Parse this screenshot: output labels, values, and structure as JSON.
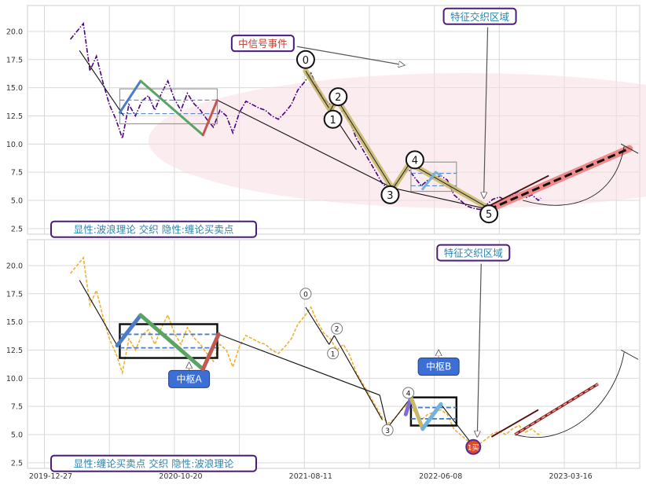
{
  "chart_data": [
    {
      "type": "line",
      "panel": "top",
      "title": "",
      "xlabel": "",
      "ylabel": "",
      "ylim": [
        2,
        22.3
      ],
      "yticks": [
        2.5,
        5.0,
        7.5,
        10.0,
        12.5,
        15.0,
        17.5,
        20.0
      ],
      "grid": true,
      "price_color": "#4b0082",
      "price_style": "dash-dot",
      "price_series": [
        [
          0,
          19.3
        ],
        [
          5,
          20.0
        ],
        [
          10,
          20.7
        ],
        [
          15,
          16.5
        ],
        [
          20,
          17.8
        ],
        [
          25,
          15.5
        ],
        [
          30,
          13.5
        ],
        [
          35,
          12.2
        ],
        [
          40,
          10.5
        ],
        [
          45,
          13.5
        ],
        [
          50,
          12.5
        ],
        [
          55,
          13.8
        ],
        [
          60,
          14.3
        ],
        [
          65,
          13.0
        ],
        [
          70,
          14.5
        ],
        [
          75,
          15.6
        ],
        [
          80,
          14.0
        ],
        [
          85,
          13.0
        ],
        [
          90,
          14.5
        ],
        [
          95,
          13.6
        ],
        [
          100,
          13.0
        ],
        [
          105,
          12.2
        ],
        [
          110,
          11.5
        ],
        [
          115,
          13.0
        ],
        [
          120,
          12.5
        ],
        [
          125,
          11.0
        ],
        [
          130,
          12.8
        ],
        [
          135,
          13.8
        ],
        [
          140,
          13.5
        ],
        [
          145,
          13.2
        ],
        [
          150,
          13.0
        ],
        [
          155,
          12.5
        ],
        [
          160,
          12.2
        ],
        [
          165,
          12.8
        ],
        [
          170,
          13.5
        ],
        [
          175,
          14.8
        ],
        [
          180,
          15.5
        ],
        [
          185,
          16.3
        ],
        [
          190,
          15.0
        ],
        [
          195,
          14.0
        ],
        [
          200,
          13.5
        ],
        [
          205,
          12.5
        ],
        [
          210,
          13.0
        ],
        [
          215,
          12.0
        ],
        [
          220,
          10.5
        ],
        [
          225,
          9.5
        ],
        [
          230,
          8.5
        ],
        [
          235,
          7.5
        ],
        [
          240,
          6.5
        ],
        [
          245,
          6.0
        ],
        [
          250,
          6.5
        ],
        [
          255,
          7.2
        ],
        [
          260,
          7.8
        ],
        [
          265,
          7.0
        ],
        [
          270,
          6.3
        ],
        [
          275,
          6.8
        ],
        [
          280,
          7.0
        ],
        [
          285,
          7.2
        ],
        [
          290,
          6.8
        ],
        [
          295,
          5.5
        ],
        [
          300,
          5.0
        ],
        [
          305,
          4.5
        ],
        [
          310,
          4.3
        ],
        [
          315,
          4.2
        ],
        [
          320,
          4.6
        ],
        [
          325,
          5.1
        ],
        [
          330,
          5.3
        ],
        [
          335,
          5.0
        ],
        [
          340,
          5.5
        ],
        [
          345,
          5.8
        ],
        [
          350,
          5.2
        ],
        [
          355,
          5.5
        ],
        [
          360,
          5.0
        ],
        [
          362,
          5.2
        ]
      ],
      "stroke_segments": [
        {
          "name": "0",
          "x": [
            181,
            200
          ],
          "y": [
            16.5,
            13.0
          ],
          "color": "#c8b96a"
        },
        {
          "name": "1",
          "x": [
            200,
            205
          ],
          "y": [
            13.0,
            14.0
          ],
          "color": "#c8b96a"
        },
        {
          "name": "2",
          "x": [
            205,
            248
          ],
          "y": [
            14.0,
            6.0
          ],
          "color": "#c8b96a"
        },
        {
          "name": "3",
          "x": [
            248,
            261
          ],
          "y": [
            6.0,
            8.3
          ],
          "color": "#c8b96a"
        },
        {
          "name": "4",
          "x": [
            261,
            322
          ],
          "y": [
            8.3,
            4.3
          ],
          "color": "#c8b96a"
        }
      ],
      "inner_strokes": [
        {
          "x": [
            38,
            54
          ],
          "y": [
            12.8,
            15.6
          ],
          "color": "#4a7cc7"
        },
        {
          "x": [
            54,
            102
          ],
          "y": [
            15.6,
            10.8
          ],
          "color": "#5aa364"
        },
        {
          "x": [
            102,
            113
          ],
          "y": [
            10.8,
            13.9
          ],
          "color": "#c05a50"
        },
        {
          "x": [
            271,
            281
          ],
          "y": [
            6.0,
            7.5
          ],
          "color": "#6fb4de"
        },
        {
          "x": [
            281,
            285
          ],
          "y": [
            7.5,
            7.2
          ],
          "color": "#6fb4de"
        }
      ],
      "thin_lines": [
        {
          "x": [
            7,
            41
          ],
          "y": [
            18.3,
            12.5
          ]
        },
        {
          "x": [
            113,
            248
          ],
          "y": [
            13.9,
            6.1
          ]
        },
        {
          "x": [
            248,
            322
          ],
          "y": [
            6.1,
            4.2
          ]
        },
        {
          "x": [
            181,
            220
          ],
          "y": [
            16.3,
            9.5
          ]
        }
      ],
      "zhongshu": [
        {
          "x0": 38,
          "x1": 113,
          "zg": 14.9,
          "zd": 11.8,
          "inner_hi": 13.9,
          "inner_lo": 12.7
        },
        {
          "x0": 262,
          "x1": 297,
          "zg": 8.4,
          "zd": 5.8,
          "inner_hi": 7.4,
          "inner_lo": 6.3
        }
      ],
      "segment_labels": [
        {
          "text": "0",
          "x": 181,
          "y": 17.5
        },
        {
          "text": "1",
          "x": 202,
          "y": 12.2
        },
        {
          "text": "2",
          "x": 206,
          "y": 14.2
        },
        {
          "text": "3",
          "x": 246,
          "y": 5.5
        },
        {
          "text": "4",
          "x": 265,
          "y": 8.6
        },
        {
          "text": "5",
          "x": 322,
          "y": 3.8
        }
      ],
      "trend_future": {
        "x": [
          322,
          430
        ],
        "y": [
          4.2,
          9.6
        ],
        "color": "#f08a8a"
      },
      "trend_extra": {
        "x": [
          322,
          368
        ],
        "y": [
          4.5,
          7.2
        ]
      },
      "arc_projection": {
        "from": [
          348,
          5.0
        ],
        "to": [
          426,
          9.8
        ]
      },
      "ellipse": {
        "cx": 305,
        "cy": 10.3,
        "rx": 245,
        "ry": 6.0
      },
      "annotations": [
        {
          "text": "中信号事件",
          "x": 148,
          "y": 18.8,
          "color": "#c0392b"
        },
        {
          "text": "特征交织区域",
          "x": 315,
          "y": 21.2,
          "color": "#2e86ab"
        },
        {
          "text": "显性:波浪理论 交织 隐性:缠论买卖点",
          "x": 3,
          "y": 2.3,
          "color": "#2e86ab"
        }
      ]
    },
    {
      "type": "line",
      "panel": "bottom",
      "title": "",
      "xlabel": "",
      "ylabel": "",
      "ylim": [
        2,
        22.3
      ],
      "yticks": [
        2.5,
        5.0,
        7.5,
        10.0,
        12.5,
        15.0,
        17.5,
        20.0
      ],
      "xticks": [
        {
          "label": "2019-12-27",
          "x": -20
        },
        {
          "label": "2020-10-20",
          "x": 80
        },
        {
          "label": "2021-08-11",
          "x": 180
        },
        {
          "label": "2022-06-08",
          "x": 280
        },
        {
          "label": "2023-03-16",
          "x": 380
        }
      ],
      "grid": true,
      "price_color": "#f0b030",
      "price_style": "dashed",
      "zhongshu": [
        {
          "x0": 38,
          "x1": 113,
          "zg": 14.8,
          "zd": 11.8,
          "inner_hi": 13.9,
          "inner_lo": 12.7,
          "label": "中枢A",
          "label_x": 78,
          "label_y": 10.0
        },
        {
          "x0": 262,
          "x1": 297,
          "zg": 8.3,
          "zd": 5.8,
          "inner_hi": 7.4,
          "inner_lo": 6.4,
          "label": "中枢B",
          "label_x": 270,
          "label_y": 11.1
        }
      ],
      "inner_strokes": [
        {
          "x": [
            36,
            54
          ],
          "y": [
            12.9,
            15.6
          ],
          "color": "#4a7cc7"
        },
        {
          "x": [
            54,
            102
          ],
          "y": [
            15.6,
            10.8
          ],
          "color": "#5aa364"
        },
        {
          "x": [
            102,
            114
          ],
          "y": [
            10.8,
            13.9
          ],
          "color": "#c05a50"
        },
        {
          "x": [
            258,
            262
          ],
          "y": [
            6.8,
            8.3
          ],
          "color": "#7b6fd6"
        },
        {
          "x": [
            262,
            271
          ],
          "y": [
            8.3,
            5.5
          ],
          "color": "#c8b96a"
        },
        {
          "x": [
            271,
            285
          ],
          "y": [
            5.5,
            7.7
          ],
          "color": "#6fb4de"
        }
      ],
      "thin_lines": [
        {
          "x": [
            7,
            36
          ],
          "y": [
            18.7,
            12.9
          ]
        },
        {
          "x": [
            114,
            238
          ],
          "y": [
            13.9,
            8.5
          ]
        },
        {
          "x": [
            238,
            244
          ],
          "y": [
            8.5,
            5.6
          ]
        },
        {
          "x": [
            244,
            262
          ],
          "y": [
            5.6,
            8.3
          ]
        },
        {
          "x": [
            285,
            310
          ],
          "y": [
            7.7,
            4.0
          ]
        },
        {
          "x": [
            181,
            199
          ],
          "y": [
            16.3,
            13.0
          ]
        },
        {
          "x": [
            199,
            203
          ],
          "y": [
            13.0,
            13.8
          ]
        },
        {
          "x": [
            203,
            240
          ],
          "y": [
            13.8,
            6.3
          ]
        }
      ],
      "segment_labels": [
        {
          "text": "0",
          "x": 181,
          "y": 17.5
        },
        {
          "text": "1",
          "x": 202,
          "y": 12.2
        },
        {
          "text": "2",
          "x": 205,
          "y": 14.4
        },
        {
          "text": "3",
          "x": 244,
          "y": 5.4
        },
        {
          "text": "4",
          "x": 260,
          "y": 8.7
        }
      ],
      "buy_point": {
        "label": "1买",
        "x": 310,
        "y": 3.9
      },
      "trend_future": {
        "x": [
          342,
          406
        ],
        "y": [
          5.0,
          9.5
        ],
        "color": "#8b2020"
      },
      "trend_extra": {
        "x": [
          324,
          360
        ],
        "y": [
          4.8,
          7.2
        ]
      },
      "arc_projection": {
        "from": [
          342,
          5.0
        ],
        "to": [
          426,
          12.3
        ]
      },
      "annotations": [
        {
          "text": "特征交织区域",
          "x": 310,
          "y": 21.0,
          "color": "#2e86ab"
        },
        {
          "text": "显性:缠论买卖点 交织 隐性:波浪理论",
          "x": 3,
          "y": 2.3,
          "color": "#2e86ab"
        }
      ]
    }
  ]
}
